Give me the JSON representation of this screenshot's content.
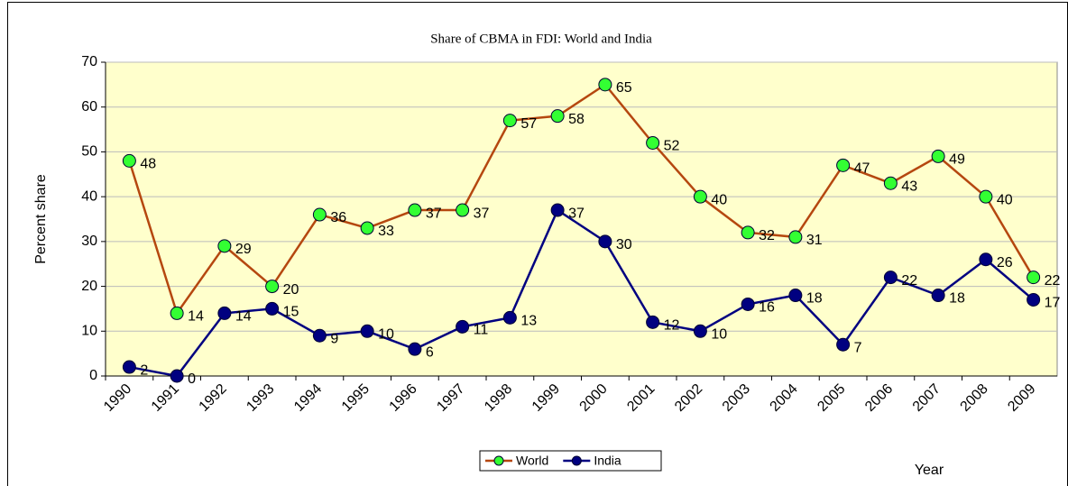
{
  "chart_data": {
    "type": "line",
    "title": "Share of CBMA in FDI: World and India",
    "y_label": "Percent share",
    "x_label": "Year",
    "categories": [
      "1990",
      "1991",
      "1992",
      "1993",
      "1994",
      "1995",
      "1996",
      "1997",
      "1998",
      "1999",
      "2000",
      "2001",
      "2002",
      "2003",
      "2004",
      "2005",
      "2006",
      "2007",
      "2008",
      "2009"
    ],
    "series": [
      {
        "name": "World",
        "color": "#b5470f",
        "marker_color": "#33ff33",
        "values": [
          48,
          14,
          29,
          20,
          36,
          33,
          37,
          37,
          57,
          58,
          65,
          52,
          40,
          32,
          31,
          47,
          43,
          49,
          40,
          22
        ]
      },
      {
        "name": "India",
        "color": "#000080",
        "marker_color": "#000080",
        "values": [
          2,
          0,
          14,
          15,
          9,
          10,
          6,
          11,
          13,
          37,
          30,
          12,
          10,
          16,
          18,
          7,
          22,
          18,
          26,
          17
        ]
      }
    ],
    "ylim": [
      0,
      70
    ],
    "yticks": [
      0,
      10,
      20,
      30,
      40,
      50,
      60,
      70
    ],
    "grid": true,
    "legend": "bottom"
  }
}
